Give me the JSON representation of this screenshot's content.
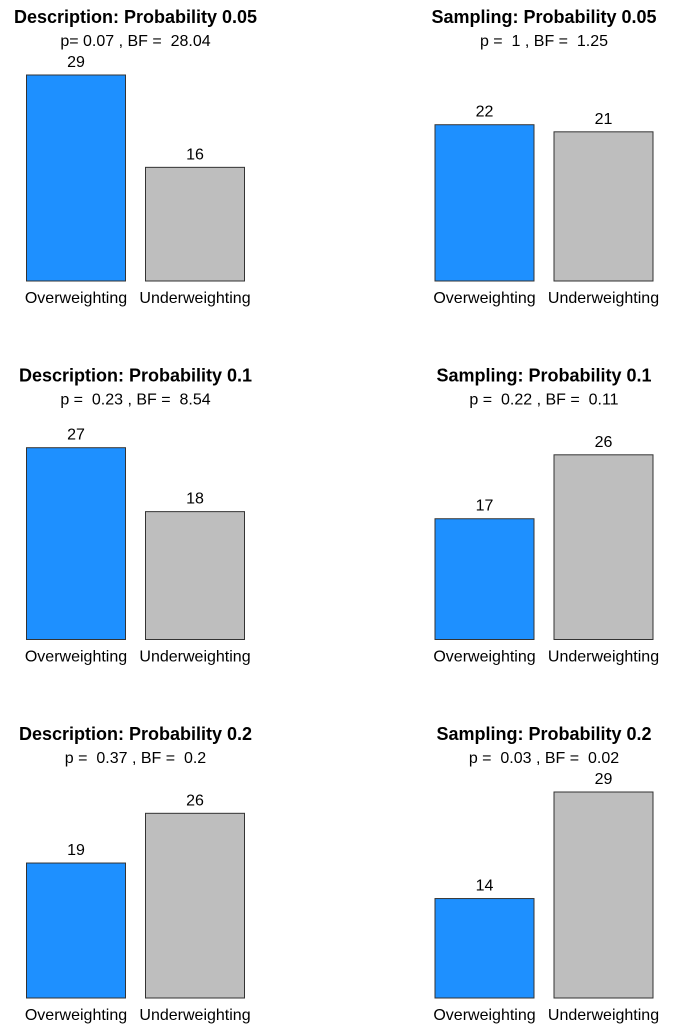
{
  "chart_data": [
    {
      "type": "bar",
      "title": "Description: Probability 0.05",
      "subtitle": "p= 0.07 , BF =  28.04",
      "categories": [
        "Overweighting",
        "Underweighting"
      ],
      "values": [
        29,
        16
      ],
      "colors": [
        "#1e90ff",
        "#bebebe"
      ],
      "ylim": [
        0,
        29
      ]
    },
    {
      "type": "bar",
      "title": "Sampling: Probability 0.05",
      "subtitle": "p =  1 , BF =  1.25",
      "categories": [
        "Overweighting",
        "Underweighting"
      ],
      "values": [
        22,
        21
      ],
      "colors": [
        "#1e90ff",
        "#bebebe"
      ],
      "ylim": [
        0,
        29
      ]
    },
    {
      "type": "bar",
      "title": "Description: Probability 0.1",
      "subtitle": "p =  0.23 , BF =  8.54",
      "categories": [
        "Overweighting",
        "Underweighting"
      ],
      "values": [
        27,
        18
      ],
      "colors": [
        "#1e90ff",
        "#bebebe"
      ],
      "ylim": [
        0,
        29
      ]
    },
    {
      "type": "bar",
      "title": "Sampling: Probability 0.1",
      "subtitle": "p =  0.22 , BF =  0.11",
      "categories": [
        "Overweighting",
        "Underweighting"
      ],
      "values": [
        17,
        26
      ],
      "colors": [
        "#1e90ff",
        "#bebebe"
      ],
      "ylim": [
        0,
        29
      ]
    },
    {
      "type": "bar",
      "title": "Description: Probability 0.2",
      "subtitle": "p =  0.37 , BF =  0.2",
      "categories": [
        "Overweighting",
        "Underweighting"
      ],
      "values": [
        19,
        26
      ],
      "colors": [
        "#1e90ff",
        "#bebebe"
      ],
      "ylim": [
        0,
        29
      ]
    },
    {
      "type": "bar",
      "title": "Sampling: Probability 0.2",
      "subtitle": "p =  0.03 , BF =  0.02",
      "categories": [
        "Overweighting",
        "Underweighting"
      ],
      "values": [
        14,
        29
      ],
      "colors": [
        "#1e90ff",
        "#bebebe"
      ],
      "ylim": [
        0,
        29
      ]
    }
  ]
}
